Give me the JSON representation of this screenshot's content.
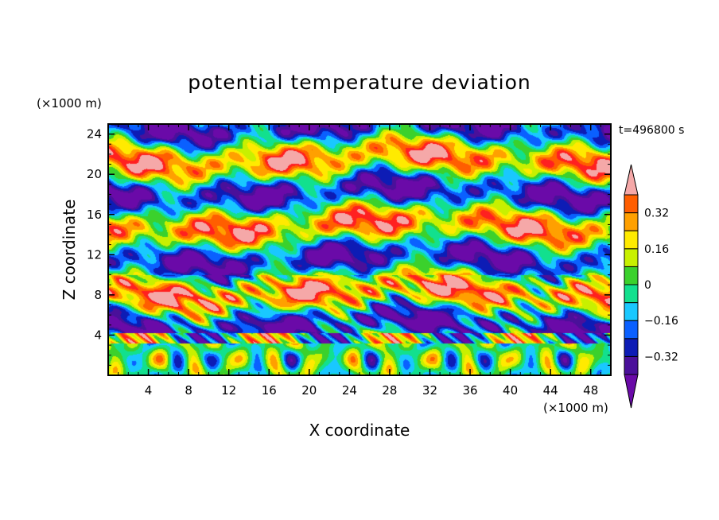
{
  "chart_data": {
    "type": "heatmap",
    "title": "potential temperature deviation",
    "xlabel": "X coordinate",
    "ylabel": "Z coordinate",
    "x_unit": "(×1000 m)",
    "y_unit": "(×1000 m)",
    "time_label": "t=496800 s",
    "xlim": [
      0,
      50
    ],
    "ylim": [
      0,
      25
    ],
    "x_ticks": [
      4,
      8,
      12,
      16,
      20,
      24,
      28,
      32,
      36,
      40,
      44,
      48
    ],
    "y_ticks": [
      4,
      8,
      12,
      16,
      20,
      24
    ],
    "x_tick_labels": [
      "4",
      "8",
      "12",
      "16",
      "20",
      "24",
      "28",
      "32",
      "36",
      "40",
      "44",
      "48"
    ],
    "y_tick_labels": [
      "4",
      "8",
      "12",
      "16",
      "20",
      "24"
    ],
    "colorbar": {
      "levels": [
        -0.4,
        -0.32,
        -0.24,
        -0.16,
        -0.08,
        0,
        0.08,
        0.16,
        0.24,
        0.32,
        0.4
      ],
      "tick_values": [
        0.32,
        0.16,
        0,
        -0.16,
        -0.32
      ],
      "tick_labels": [
        "0.32",
        "0.16",
        "0",
        "−0.16",
        "−0.32"
      ],
      "colors": [
        "#6a0aa8",
        "#4a109a",
        "#0d1cb5",
        "#0a60ff",
        "#19c8ff",
        "#12e08e",
        "#3bd12c",
        "#c8f000",
        "#ffea00",
        "#ffa000",
        "#ff5e00",
        "#ff2020",
        "#f5a8a8"
      ],
      "extend": "both"
    }
  }
}
